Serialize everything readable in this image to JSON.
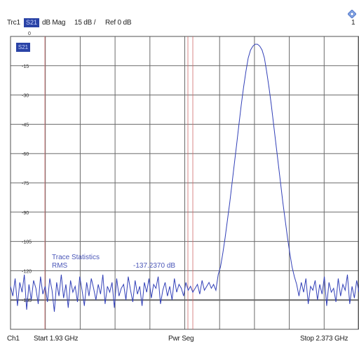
{
  "header": {
    "trace": "Trc1",
    "param": "S21",
    "format": "dB Mag",
    "scale": "15 dB /",
    "ref": "Ref 0 dB",
    "ref_marker": "0",
    "right_corner": "1"
  },
  "trace_badge": "S21",
  "statistics": {
    "title": "Trace Statistics",
    "label": "RMS",
    "value": "-137.2370 dB"
  },
  "footer": {
    "channel": "Ch1",
    "start": "Start 1.93 GHz",
    "mode": "Pwr Seg",
    "stop": "Stop 2.373 GHz"
  },
  "colors": {
    "trace": "#3240b8",
    "grid": "#6a6a6a",
    "marker_line": "#d06a6a",
    "label_text": "#4a56b8"
  },
  "chart_data": {
    "type": "line",
    "xlabel": "",
    "ylabel": "",
    "ylim": [
      -135,
      0
    ],
    "y_ticks": [
      0,
      -15,
      -30,
      -45,
      -60,
      -75,
      -90,
      -105,
      -120,
      -135
    ],
    "y_tick_labels": [
      "0",
      "-15",
      "-30",
      "-45",
      "-60",
      "-75",
      "-90",
      "-105",
      "-120",
      "-135"
    ],
    "x_divisions": 10,
    "x_start_ghz": 1.93,
    "x_stop_ghz": 2.373,
    "grid": true,
    "series": [
      {
        "values": [
          -128,
          -133,
          -124,
          -138,
          -126,
          -131,
          -122,
          -140,
          -127,
          -135,
          -125,
          -129,
          -137,
          -123,
          -132,
          -128,
          -136,
          -124,
          -130,
          -141,
          -126,
          -133,
          -122,
          -134,
          -127,
          -139,
          -125,
          -131,
          -128,
          -136,
          -123,
          -130,
          -138,
          -126,
          -133,
          -124,
          -129,
          -135,
          -127,
          -132,
          -122,
          -137,
          -128,
          -131,
          -126,
          -139,
          -124,
          -133,
          -129,
          -127,
          -135,
          -123,
          -130,
          -136,
          -125,
          -132,
          -128,
          -138,
          -126,
          -131,
          -124,
          -134,
          -127,
          -129,
          -123,
          -137,
          -130,
          -126,
          -133,
          -128,
          -135,
          -124,
          -131,
          -127,
          -129,
          -133,
          -126,
          -130,
          -128,
          -131,
          -129,
          -127,
          -132,
          -125,
          -130,
          -128,
          -126,
          -129,
          -127,
          -130,
          -122,
          -118,
          -111,
          -103,
          -94,
          -85,
          -75,
          -65,
          -55,
          -45,
          -35,
          -26,
          -18,
          -11,
          -7,
          -5,
          -4,
          -4,
          -5,
          -7,
          -11,
          -18,
          -26,
          -35,
          -45,
          -55,
          -65,
          -75,
          -85,
          -94,
          -103,
          -111,
          -118,
          -123,
          -127,
          -133,
          -126,
          -131,
          -124,
          -137,
          -128,
          -130,
          -125,
          -135,
          -127,
          -132,
          -123,
          -138,
          -126,
          -131,
          -129,
          -136,
          -124,
          -133,
          -127,
          -130,
          -122,
          -137,
          -128,
          -134,
          -125,
          -131
        ]
      }
    ]
  }
}
